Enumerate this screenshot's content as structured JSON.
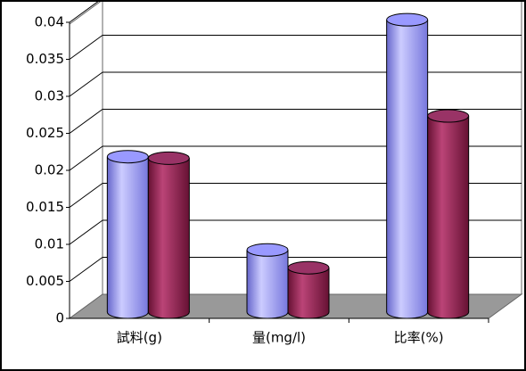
{
  "chart_data": {
    "type": "bar3d",
    "categories": [
      "試料(g)",
      "量(mg/l)",
      "比率(%)"
    ],
    "series": [
      {
        "color": "#9999ff",
        "values": [
          0.021,
          0.0084,
          0.0395
        ]
      },
      {
        "color": "#993366",
        "values": [
          0.0208,
          0.006,
          0.0265
        ]
      }
    ],
    "ylim": [
      0,
      0.04
    ],
    "yticks": [
      0,
      0.005,
      0.01,
      0.015,
      0.02,
      0.025,
      0.03,
      0.035,
      0.04
    ],
    "grid": true
  }
}
